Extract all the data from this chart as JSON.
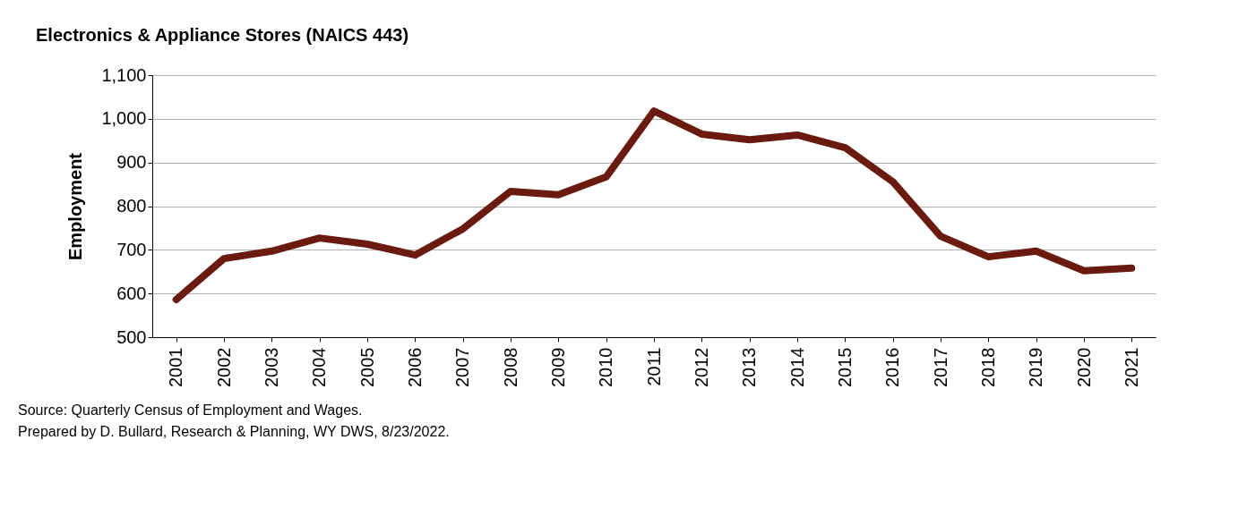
{
  "chart_data": {
    "type": "line",
    "title": "Electronics & Appliance Stores (NAICS 443)",
    "ylabel": "Employment",
    "categories": [
      "2001",
      "2002",
      "2003",
      "2004",
      "2005",
      "2006",
      "2007",
      "2008",
      "2009",
      "2010",
      "2011",
      "2012",
      "2013",
      "2014",
      "2015",
      "2016",
      "2017",
      "2018",
      "2019",
      "2020",
      "2021"
    ],
    "series": [
      {
        "color": "#6b1a10",
        "values": [
          586,
          680,
          697,
          727,
          713,
          688,
          748,
          834,
          826,
          867,
          1018,
          965,
          952,
          963,
          934,
          856,
          731,
          684,
          697,
          652,
          658
        ]
      }
    ],
    "ylim": [
      500,
      1100
    ],
    "yticks": [
      500,
      600,
      700,
      800,
      900,
      {
        "value": 1000,
        "label": "1,000"
      },
      {
        "value": 1100,
        "label": "1,100"
      }
    ],
    "grid": "y",
    "annotations": [
      "Source: Quarterly Census of Employment and Wages.",
      "Prepared by D. Bullard, Research & Planning, WY DWS, 8/23/2022."
    ]
  }
}
